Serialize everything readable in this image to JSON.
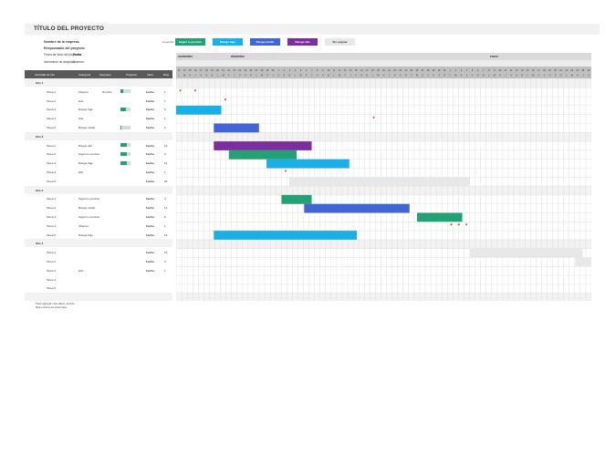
{
  "title": "TÍTULO DEL PROYECTO",
  "company": "Nombre de la empresa",
  "manager": "Responsable del proyecto",
  "start_label": "Fecha de inicio del proyecto:",
  "start_value": "Fecha",
  "increment_label": "Incremento de desplazamiento:",
  "increment_value": "0",
  "legend_label": "Leyenda:",
  "legend": [
    {
      "label": "Según lo previsto",
      "color": "#23a074"
    },
    {
      "label": "Riesgo bajo",
      "color": "#1aafe6"
    },
    {
      "label": "Riesgo medio",
      "color": "#4265d6"
    },
    {
      "label": "Riesgo alto",
      "color": "#7b2f9e"
    },
    {
      "label": "Sin asignar",
      "color": "#e8e8e8"
    }
  ],
  "columns": [
    "Actividad de hito",
    "Categoría",
    "Asignado",
    "Progreso",
    "Inicio",
    "Días"
  ],
  "months": [
    "noviembre",
    "diciembre",
    "enero"
  ],
  "days": [
    "13",
    "14",
    "15",
    "16",
    "17",
    "18",
    "19",
    "20",
    "21",
    "22",
    "23",
    "24",
    "25",
    "26",
    "27",
    "28",
    "29",
    "30",
    "1",
    "2",
    "3",
    "4",
    "5",
    "6",
    "7",
    "8",
    "9",
    "10",
    "11",
    "12",
    "13",
    "14",
    "15",
    "16",
    "17",
    "18",
    "19",
    "20",
    "21",
    "22",
    "23",
    "24",
    "25",
    "26",
    "27",
    "28",
    "29",
    "30",
    "31",
    "1",
    "2",
    "3",
    "4",
    "5",
    "6",
    "7",
    "8",
    "9",
    "10",
    "11",
    "12",
    "13",
    "14",
    "15",
    "16",
    "17",
    "18",
    "19",
    "20",
    "21",
    "22",
    "23",
    "24",
    "25",
    "26"
  ],
  "weekday_letters": [
    "L",
    "M",
    "X",
    "J",
    "V",
    "S",
    "D"
  ],
  "rows": [
    {
      "type": "hito",
      "name": "Hito 1"
    },
    {
      "type": "task",
      "name": "Tarea 1",
      "category": "Objetivo",
      "assigned": "Nombre",
      "progress": 0.25,
      "start": "Fecha",
      "days": "1",
      "dots": [
        0.3,
        2.3
      ]
    },
    {
      "type": "task",
      "name": "Tarea 2",
      "category": "Hito",
      "assigned": "",
      "progress": null,
      "start": "Fecha",
      "days": "1",
      "dots": [
        6.3
      ]
    },
    {
      "type": "task",
      "name": "Tarea 3",
      "category": "Riesgo bajo",
      "assigned": "",
      "progress": 0.5,
      "start": "Fecha",
      "days": "6",
      "bar": {
        "start": 0,
        "len": 6,
        "risk": "low"
      }
    },
    {
      "type": "task",
      "name": "Tarea 4",
      "category": "Hito",
      "assigned": "",
      "progress": null,
      "start": "Fecha",
      "days": "1",
      "dots": [
        26
      ]
    },
    {
      "type": "task",
      "name": "Tarea 5",
      "category": "Riesgo medio",
      "assigned": "",
      "progress": 0.1,
      "start": "Fecha",
      "days": "6",
      "bar": {
        "start": 5,
        "len": 6,
        "risk": "medium"
      }
    },
    {
      "type": "hito",
      "name": "Hito 2"
    },
    {
      "type": "task",
      "name": "Tarea 1",
      "category": "Riesgo alto",
      "assigned": "",
      "progress": 0.6,
      "start": "Fecha",
      "days": "13",
      "bar": {
        "start": 5,
        "len": 13,
        "risk": "high"
      }
    },
    {
      "type": "task",
      "name": "Tarea 2",
      "category": "Según lo previsto",
      "assigned": "",
      "progress": 0.6,
      "start": "Fecha",
      "days": "9",
      "bar": {
        "start": 7,
        "len": 9,
        "risk": "on_track"
      }
    },
    {
      "type": "task",
      "name": "Tarea 3",
      "category": "Riesgo bajo",
      "assigned": "",
      "progress": 0.6,
      "start": "Fecha",
      "days": "11",
      "bar": {
        "start": 12,
        "len": 11,
        "risk": "low"
      }
    },
    {
      "type": "task",
      "name": "Tarea 4",
      "category": "Hito",
      "assigned": "",
      "progress": null,
      "start": "Fecha",
      "days": "1",
      "dots": [
        14.3
      ]
    },
    {
      "type": "task",
      "name": "Tarea 5",
      "category": "",
      "assigned": "",
      "progress": null,
      "start": "Fecha",
      "days": "24",
      "bar": {
        "start": 15,
        "len": 24,
        "risk": "unassigned"
      }
    },
    {
      "type": "hito",
      "name": "Hito 3"
    },
    {
      "type": "task",
      "name": "Tarea 1",
      "category": "Según lo previsto",
      "assigned": "",
      "progress": null,
      "start": "Fecha",
      "days": "4",
      "bar": {
        "start": 14,
        "len": 4,
        "risk": "on_track"
      }
    },
    {
      "type": "task",
      "name": "Tarea 2",
      "category": "Riesgo medio",
      "assigned": "",
      "progress": null,
      "start": "Fecha",
      "days": "14",
      "bar": {
        "start": 17,
        "len": 14,
        "risk": "medium"
      }
    },
    {
      "type": "task",
      "name": "Tarea 3",
      "category": "Según lo previsto",
      "assigned": "",
      "progress": null,
      "start": "Fecha",
      "days": "6",
      "bar": {
        "start": 32,
        "len": 6,
        "risk": "on_track"
      }
    },
    {
      "type": "task",
      "name": "Tarea 4",
      "category": "Objetivo",
      "assigned": "",
      "progress": null,
      "start": "Fecha",
      "days": "1",
      "dots": [
        36.3,
        37.3,
        38.3
      ]
    },
    {
      "type": "task",
      "name": "Tarea 5",
      "category": "Riesgo bajo",
      "assigned": "",
      "progress": null,
      "start": "Fecha",
      "days": "19",
      "bar": {
        "start": 5,
        "len": 19,
        "risk": "low"
      }
    },
    {
      "type": "hito",
      "name": "Hito 4"
    },
    {
      "type": "task",
      "name": "Tarea 1",
      "category": "",
      "assigned": "",
      "progress": null,
      "start": "Fecha",
      "days": "15",
      "bar": {
        "start": 39,
        "len": 15,
        "risk": "unassigned"
      }
    },
    {
      "type": "task",
      "name": "Tarea 2",
      "category": "",
      "assigned": "",
      "progress": null,
      "start": "Fecha",
      "days": "3",
      "bar": {
        "start": 53,
        "len": 3,
        "risk": "unassigned"
      }
    },
    {
      "type": "task",
      "name": "Tarea 3",
      "category": "Hito",
      "assigned": "",
      "progress": null,
      "start": "Fecha",
      "days": "1"
    },
    {
      "type": "task",
      "name": "Tarea 4",
      "category": "",
      "assigned": "",
      "progress": null,
      "start": "",
      "days": ""
    },
    {
      "type": "task",
      "name": "Tarea 5",
      "category": "",
      "assigned": "",
      "progress": null,
      "start": "",
      "days": ""
    },
    {
      "type": "blank"
    }
  ],
  "notes": [
    "Para agregar más datos, inserte",
    "filas encima de esta línea."
  ]
}
